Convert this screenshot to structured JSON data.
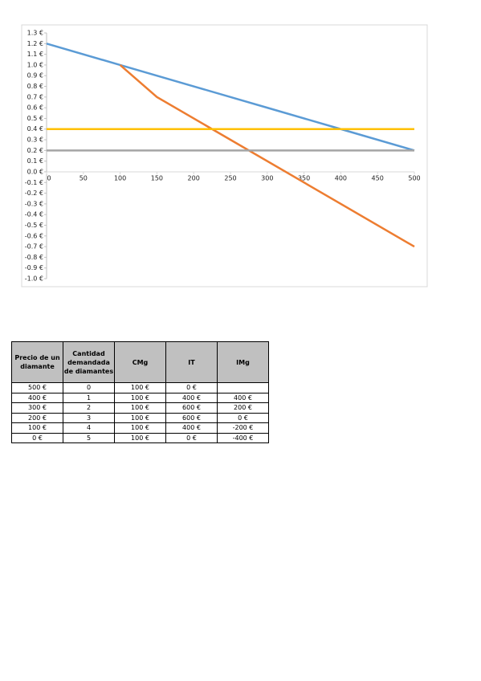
{
  "chart_data": {
    "type": "line",
    "xlim": [
      0,
      500
    ],
    "xticks": [
      0,
      50,
      100,
      150,
      200,
      250,
      300,
      350,
      400,
      450,
      500
    ],
    "ylim": [
      -1.0,
      1.3
    ],
    "yticks": [
      {
        "value": 1.3,
        "label": "1.3 €"
      },
      {
        "value": 1.2,
        "label": "1.2 €"
      },
      {
        "value": 1.1,
        "label": "1.1 €"
      },
      {
        "value": 1.0,
        "label": "1.0 €"
      },
      {
        "value": 0.9,
        "label": "0.9 €"
      },
      {
        "value": 0.8,
        "label": "0.8 €"
      },
      {
        "value": 0.7,
        "label": "0.7 €"
      },
      {
        "value": 0.6,
        "label": "0.6 €"
      },
      {
        "value": 0.5,
        "label": "0.5 €"
      },
      {
        "value": 0.4,
        "label": "0.4 €"
      },
      {
        "value": 0.3,
        "label": "0.3 €"
      },
      {
        "value": 0.2,
        "label": "0.2 €"
      },
      {
        "value": 0.1,
        "label": "0.1 €"
      },
      {
        "value": 0.0,
        "label": "0.0 €"
      },
      {
        "value": -0.1,
        "label": "-0.1 €"
      },
      {
        "value": -0.2,
        "label": "-0.2 €"
      },
      {
        "value": -0.3,
        "label": "-0.3 €"
      },
      {
        "value": -0.4,
        "label": "-0.4 €"
      },
      {
        "value": -0.5,
        "label": "-0.5 €"
      },
      {
        "value": -0.6,
        "label": "-0.6 €"
      },
      {
        "value": -0.7,
        "label": "-0.7 €"
      },
      {
        "value": -0.8,
        "label": "-0.8 €"
      },
      {
        "value": -0.9,
        "label": "-0.9 €"
      },
      {
        "value": -1.0,
        "label": "-1.0 €"
      }
    ],
    "grid": false,
    "series": [
      {
        "color": "#5b9bd5",
        "x": [
          0,
          100,
          200,
          300,
          400,
          500
        ],
        "values": [
          1.2,
          1.0,
          0.8,
          0.6,
          0.4,
          0.2
        ]
      },
      {
        "color": "#ed7d31",
        "x": [
          100,
          150,
          500
        ],
        "values": [
          1.0,
          0.7,
          -0.7
        ]
      },
      {
        "color": "#a5a5a5",
        "x": [
          0,
          500
        ],
        "values": [
          0.2,
          0.2
        ]
      },
      {
        "color": "#ffc000",
        "x": [
          0,
          500
        ],
        "values": [
          0.4,
          0.4
        ]
      }
    ]
  },
  "table": {
    "headers": [
      "Precio de un diamante",
      "Cantidad demandada de diamantes",
      "CMg",
      "IT",
      "IMg"
    ],
    "rows": [
      [
        "500 €",
        "0",
        "100 €",
        "0 €",
        null
      ],
      [
        "400 €",
        "1",
        "100 €",
        "400 €",
        "400 €"
      ],
      [
        "300 €",
        "2",
        "100 €",
        "600 €",
        "200 €"
      ],
      [
        "200 €",
        "3",
        "100 €",
        "600 €",
        "0 €"
      ],
      [
        "100 €",
        "4",
        "100 €",
        "400 €",
        "-200 €"
      ],
      [
        "0 €",
        "5",
        "100 €",
        "0 €",
        "-400 €"
      ]
    ]
  }
}
